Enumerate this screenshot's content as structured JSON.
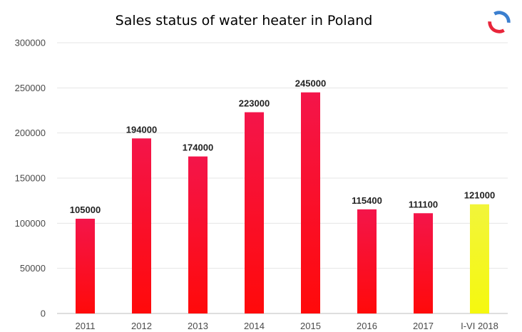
{
  "chart_data": {
    "type": "bar",
    "title": "Sales status of water heater in Poland",
    "xlabel": "",
    "ylabel": "",
    "ylim": [
      0,
      300000
    ],
    "yticks": [
      0,
      50000,
      100000,
      150000,
      200000,
      250000,
      300000
    ],
    "ytick_labels": [
      "0",
      "50000",
      "100000",
      "150000",
      "200000",
      "250000",
      "300000"
    ],
    "grid": true,
    "legend": "none",
    "categories": [
      "2011",
      "2012",
      "2013",
      "2014",
      "2015",
      "2016",
      "2017",
      "I-VI 2018"
    ],
    "values": [
      105000,
      194000,
      174000,
      223000,
      245000,
      115400,
      111100,
      121000
    ],
    "data_labels": [
      "105000",
      "194000",
      "174000",
      "223000",
      "245000",
      "115400",
      "111100",
      "121000"
    ],
    "colors": [
      "#f50c3c",
      "#f50c3c",
      "#f50c3c",
      "#f50c3c",
      "#f50c3c",
      "#f50c3c",
      "#f50c3c",
      "#f1f52a"
    ]
  },
  "theme": {
    "grid_color": "#e4e4e4",
    "axis_color": "#bdbdbd",
    "tick_text_color": "#4a4a4a",
    "label_text_color": "#222222"
  }
}
